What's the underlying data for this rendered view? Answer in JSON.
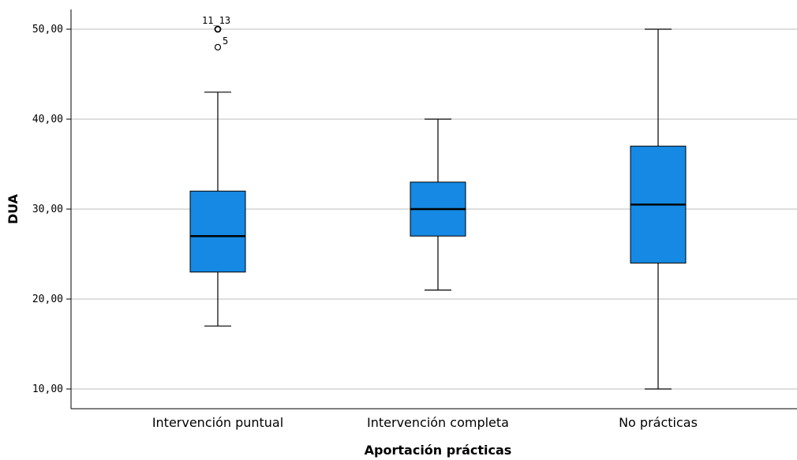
{
  "chart_data": {
    "type": "boxplot",
    "xlabel": "Aportación prácticas",
    "ylabel": "DUA",
    "ylim": [
      8,
      52
    ],
    "yticks": [
      10,
      20,
      30,
      40,
      50
    ],
    "ytick_labels": [
      "10,00",
      "20,00",
      "30,00",
      "40,00",
      "50,00"
    ],
    "grid": "horizontal",
    "box_color": "#1589e3",
    "categories": [
      "Intervención puntual",
      "Intervención completa",
      "No prácticas"
    ],
    "boxes": [
      {
        "category": "Intervención puntual",
        "whisker_low": 17,
        "q1": 23,
        "median": 27,
        "q3": 32,
        "whisker_high": 43,
        "outliers": [
          {
            "value": 50,
            "label": "11_13"
          },
          {
            "value": 48,
            "label": "5"
          }
        ]
      },
      {
        "category": "Intervención completa",
        "whisker_low": 21,
        "q1": 27,
        "median": 30,
        "q3": 33,
        "whisker_high": 40,
        "outliers": []
      },
      {
        "category": "No prácticas",
        "whisker_low": 10,
        "q1": 24,
        "median": 30.5,
        "q3": 37,
        "whisker_high": 50,
        "outliers": []
      }
    ]
  }
}
